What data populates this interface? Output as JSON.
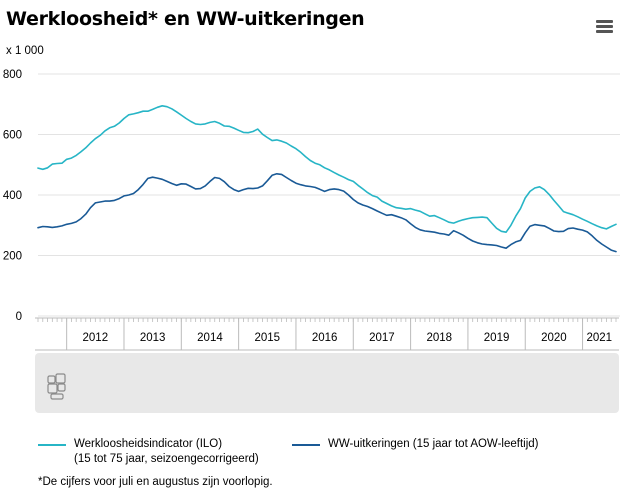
{
  "header": {
    "title": "Werkloosheid* en WW-uitkeringen",
    "unit": "x 1 000",
    "menu_icon": "hamburger-menu-icon"
  },
  "legend": {
    "series1_line1": "Werkloosheidsindicator (ILO)",
    "series1_line2": "(15 tot 75 jaar, seizoengecorrigeerd)",
    "series2_line1": "WW-uitkeringen (15 jaar tot AOW-leeftijd)"
  },
  "footnote": "*De cijfers voor juli en augustus zijn voorlopig.",
  "navigator_logo": "cbs-logo",
  "chart_data": {
    "type": "line",
    "x_unit": "month",
    "x_range": [
      "2011-07",
      "2021-08"
    ],
    "ylim": [
      0,
      800
    ],
    "yticks": [
      0,
      200,
      400,
      600,
      800
    ],
    "xticks": [
      "2012",
      "2013",
      "2014",
      "2015",
      "2016",
      "2017",
      "2018",
      "2019",
      "2020",
      "2021"
    ],
    "grid": true,
    "legend_position": "bottom",
    "colors": {
      "ilo": "#27b5c6",
      "ww": "#1a5a96",
      "grid": "#e3e3e3",
      "navigator_bg": "#e8e8e8"
    },
    "series": [
      {
        "key": "ilo",
        "points": [
          [
            "2011-07",
            489
          ],
          [
            "2011-08",
            485
          ],
          [
            "2011-09",
            490
          ],
          [
            "2011-10",
            502
          ],
          [
            "2011-11",
            504
          ],
          [
            "2011-12",
            505
          ],
          [
            "2012-01",
            518
          ],
          [
            "2012-02",
            522
          ],
          [
            "2012-03",
            531
          ],
          [
            "2012-04",
            543
          ],
          [
            "2012-05",
            556
          ],
          [
            "2012-06",
            572
          ],
          [
            "2012-07",
            586
          ],
          [
            "2012-08",
            597
          ],
          [
            "2012-09",
            612
          ],
          [
            "2012-10",
            622
          ],
          [
            "2012-11",
            627
          ],
          [
            "2012-12",
            638
          ],
          [
            "2013-01",
            653
          ],
          [
            "2013-02",
            665
          ],
          [
            "2013-03",
            668
          ],
          [
            "2013-04",
            672
          ],
          [
            "2013-05",
            677
          ],
          [
            "2013-06",
            677
          ],
          [
            "2013-07",
            683
          ],
          [
            "2013-08",
            690
          ],
          [
            "2013-09",
            695
          ],
          [
            "2013-10",
            692
          ],
          [
            "2013-11",
            685
          ],
          [
            "2013-12",
            675
          ],
          [
            "2014-01",
            664
          ],
          [
            "2014-02",
            653
          ],
          [
            "2014-03",
            643
          ],
          [
            "2014-04",
            635
          ],
          [
            "2014-05",
            633
          ],
          [
            "2014-06",
            635
          ],
          [
            "2014-07",
            640
          ],
          [
            "2014-08",
            643
          ],
          [
            "2014-09",
            637
          ],
          [
            "2014-10",
            628
          ],
          [
            "2014-11",
            627
          ],
          [
            "2014-12",
            621
          ],
          [
            "2015-01",
            614
          ],
          [
            "2015-02",
            607
          ],
          [
            "2015-03",
            606
          ],
          [
            "2015-04",
            610
          ],
          [
            "2015-05",
            618
          ],
          [
            "2015-06",
            601
          ],
          [
            "2015-07",
            590
          ],
          [
            "2015-08",
            580
          ],
          [
            "2015-09",
            582
          ],
          [
            "2015-10",
            578
          ],
          [
            "2015-11",
            572
          ],
          [
            "2015-12",
            562
          ],
          [
            "2016-01",
            553
          ],
          [
            "2016-02",
            541
          ],
          [
            "2016-03",
            527
          ],
          [
            "2016-04",
            514
          ],
          [
            "2016-05",
            505
          ],
          [
            "2016-06",
            500
          ],
          [
            "2016-07",
            490
          ],
          [
            "2016-08",
            483
          ],
          [
            "2016-09",
            474
          ],
          [
            "2016-10",
            466
          ],
          [
            "2016-11",
            459
          ],
          [
            "2016-12",
            451
          ],
          [
            "2017-01",
            445
          ],
          [
            "2017-02",
            432
          ],
          [
            "2017-03",
            420
          ],
          [
            "2017-04",
            408
          ],
          [
            "2017-05",
            398
          ],
          [
            "2017-06",
            393
          ],
          [
            "2017-07",
            380
          ],
          [
            "2017-08",
            372
          ],
          [
            "2017-09",
            364
          ],
          [
            "2017-10",
            358
          ],
          [
            "2017-11",
            356
          ],
          [
            "2017-12",
            353
          ],
          [
            "2018-01",
            355
          ],
          [
            "2018-02",
            350
          ],
          [
            "2018-03",
            346
          ],
          [
            "2018-04",
            338
          ],
          [
            "2018-05",
            330
          ],
          [
            "2018-06",
            332
          ],
          [
            "2018-07",
            325
          ],
          [
            "2018-08",
            318
          ],
          [
            "2018-09",
            310
          ],
          [
            "2018-10",
            307
          ],
          [
            "2018-11",
            313
          ],
          [
            "2018-12",
            318
          ],
          [
            "2019-01",
            322
          ],
          [
            "2019-02",
            325
          ],
          [
            "2019-03",
            326
          ],
          [
            "2019-04",
            327
          ],
          [
            "2019-05",
            325
          ],
          [
            "2019-06",
            307
          ],
          [
            "2019-07",
            290
          ],
          [
            "2019-08",
            280
          ],
          [
            "2019-09",
            277
          ],
          [
            "2019-10",
            300
          ],
          [
            "2019-11",
            330
          ],
          [
            "2019-12",
            355
          ],
          [
            "2020-01",
            390
          ],
          [
            "2020-02",
            412
          ],
          [
            "2020-03",
            423
          ],
          [
            "2020-04",
            427
          ],
          [
            "2020-05",
            418
          ],
          [
            "2020-06",
            402
          ],
          [
            "2020-07",
            382
          ],
          [
            "2020-08",
            364
          ],
          [
            "2020-09",
            345
          ],
          [
            "2020-10",
            340
          ],
          [
            "2020-11",
            335
          ],
          [
            "2020-12",
            328
          ],
          [
            "2021-01",
            320
          ],
          [
            "2021-02",
            313
          ],
          [
            "2021-03",
            305
          ],
          [
            "2021-04",
            298
          ],
          [
            "2021-05",
            292
          ],
          [
            "2021-06",
            288
          ],
          [
            "2021-07",
            296
          ],
          [
            "2021-08",
            303
          ]
        ]
      },
      {
        "key": "ww",
        "points": [
          [
            "2011-07",
            292
          ],
          [
            "2011-08",
            296
          ],
          [
            "2011-09",
            295
          ],
          [
            "2011-10",
            293
          ],
          [
            "2011-11",
            295
          ],
          [
            "2011-12",
            298
          ],
          [
            "2012-01",
            303
          ],
          [
            "2012-02",
            306
          ],
          [
            "2012-03",
            311
          ],
          [
            "2012-04",
            322
          ],
          [
            "2012-05",
            337
          ],
          [
            "2012-06",
            358
          ],
          [
            "2012-07",
            374
          ],
          [
            "2012-08",
            377
          ],
          [
            "2012-09",
            380
          ],
          [
            "2012-10",
            380
          ],
          [
            "2012-11",
            382
          ],
          [
            "2012-12",
            388
          ],
          [
            "2013-01",
            397
          ],
          [
            "2013-02",
            400
          ],
          [
            "2013-03",
            405
          ],
          [
            "2013-04",
            418
          ],
          [
            "2013-05",
            435
          ],
          [
            "2013-06",
            455
          ],
          [
            "2013-07",
            459
          ],
          [
            "2013-08",
            456
          ],
          [
            "2013-09",
            452
          ],
          [
            "2013-10",
            445
          ],
          [
            "2013-11",
            438
          ],
          [
            "2013-12",
            432
          ],
          [
            "2014-01",
            437
          ],
          [
            "2014-02",
            436
          ],
          [
            "2014-03",
            428
          ],
          [
            "2014-04",
            420
          ],
          [
            "2014-05",
            421
          ],
          [
            "2014-06",
            430
          ],
          [
            "2014-07",
            445
          ],
          [
            "2014-08",
            458
          ],
          [
            "2014-09",
            455
          ],
          [
            "2014-10",
            444
          ],
          [
            "2014-11",
            428
          ],
          [
            "2014-12",
            418
          ],
          [
            "2015-01",
            412
          ],
          [
            "2015-02",
            418
          ],
          [
            "2015-03",
            422
          ],
          [
            "2015-04",
            421
          ],
          [
            "2015-05",
            423
          ],
          [
            "2015-06",
            430
          ],
          [
            "2015-07",
            447
          ],
          [
            "2015-08",
            465
          ],
          [
            "2015-09",
            470
          ],
          [
            "2015-10",
            468
          ],
          [
            "2015-11",
            458
          ],
          [
            "2015-12",
            448
          ],
          [
            "2016-01",
            439
          ],
          [
            "2016-02",
            434
          ],
          [
            "2016-03",
            430
          ],
          [
            "2016-04",
            428
          ],
          [
            "2016-05",
            425
          ],
          [
            "2016-06",
            419
          ],
          [
            "2016-07",
            412
          ],
          [
            "2016-08",
            418
          ],
          [
            "2016-09",
            420
          ],
          [
            "2016-10",
            418
          ],
          [
            "2016-11",
            413
          ],
          [
            "2016-12",
            400
          ],
          [
            "2017-01",
            385
          ],
          [
            "2017-02",
            374
          ],
          [
            "2017-03",
            367
          ],
          [
            "2017-04",
            362
          ],
          [
            "2017-05",
            355
          ],
          [
            "2017-06",
            347
          ],
          [
            "2017-07",
            340
          ],
          [
            "2017-08",
            333
          ],
          [
            "2017-09",
            335
          ],
          [
            "2017-10",
            330
          ],
          [
            "2017-11",
            325
          ],
          [
            "2017-12",
            318
          ],
          [
            "2018-01",
            305
          ],
          [
            "2018-02",
            293
          ],
          [
            "2018-03",
            285
          ],
          [
            "2018-04",
            281
          ],
          [
            "2018-05",
            279
          ],
          [
            "2018-06",
            277
          ],
          [
            "2018-07",
            273
          ],
          [
            "2018-08",
            271
          ],
          [
            "2018-09",
            267
          ],
          [
            "2018-10",
            282
          ],
          [
            "2018-11",
            275
          ],
          [
            "2018-12",
            267
          ],
          [
            "2019-01",
            257
          ],
          [
            "2019-02",
            248
          ],
          [
            "2019-03",
            242
          ],
          [
            "2019-04",
            238
          ],
          [
            "2019-05",
            236
          ],
          [
            "2019-06",
            235
          ],
          [
            "2019-07",
            233
          ],
          [
            "2019-08",
            228
          ],
          [
            "2019-09",
            224
          ],
          [
            "2019-10",
            236
          ],
          [
            "2019-11",
            245
          ],
          [
            "2019-12",
            250
          ],
          [
            "2020-01",
            275
          ],
          [
            "2020-02",
            297
          ],
          [
            "2020-03",
            302
          ],
          [
            "2020-04",
            300
          ],
          [
            "2020-05",
            298
          ],
          [
            "2020-06",
            290
          ],
          [
            "2020-07",
            281
          ],
          [
            "2020-08",
            279
          ],
          [
            "2020-09",
            280
          ],
          [
            "2020-10",
            289
          ],
          [
            "2020-11",
            291
          ],
          [
            "2020-12",
            287
          ],
          [
            "2021-01",
            284
          ],
          [
            "2021-02",
            278
          ],
          [
            "2021-03",
            265
          ],
          [
            "2021-04",
            250
          ],
          [
            "2021-05",
            238
          ],
          [
            "2021-06",
            228
          ],
          [
            "2021-07",
            218
          ],
          [
            "2021-08",
            213
          ]
        ]
      }
    ]
  }
}
